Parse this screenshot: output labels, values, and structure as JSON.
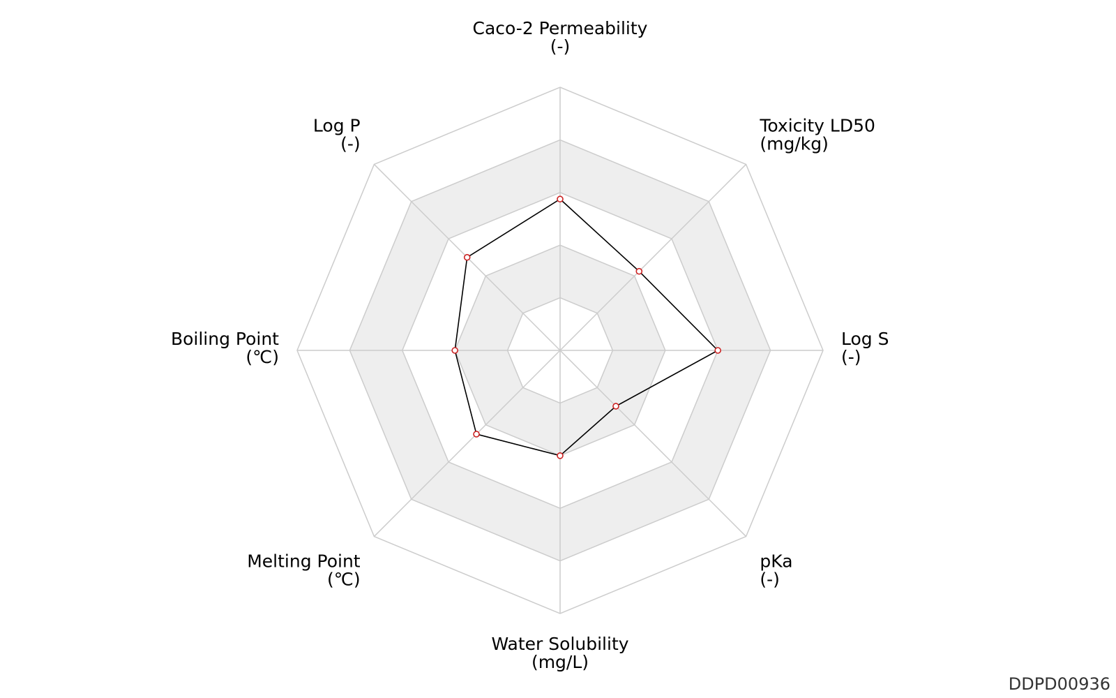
{
  "chart_data": {
    "type": "radar",
    "title": "",
    "axes": [
      {
        "name": "Caco-2 Permeability",
        "unit": "(-)"
      },
      {
        "name": "Toxicity LD50",
        "unit": "(mg/kg)"
      },
      {
        "name": "Log S",
        "unit": "(-)"
      },
      {
        "name": "pKa",
        "unit": "(-)"
      },
      {
        "name": "Water Solubility",
        "unit": "(mg/L)"
      },
      {
        "name": "Melting Point",
        "unit": "(℃)"
      },
      {
        "name": "Boiling Point",
        "unit": "(℃)"
      },
      {
        "name": "Log P",
        "unit": "(-)"
      }
    ],
    "rings": 5,
    "range": [
      0,
      1
    ],
    "series": [
      {
        "name": "",
        "values": [
          0.575,
          0.425,
          0.6,
          0.3,
          0.4,
          0.45,
          0.4,
          0.5
        ]
      }
    ],
    "colors": {
      "band": "#eeeeee",
      "grid": "#cccccc",
      "line": "#000000",
      "marker_edge": "#cc2222",
      "marker_fill": "#ffffff"
    }
  },
  "watermark": "DDPD00936"
}
